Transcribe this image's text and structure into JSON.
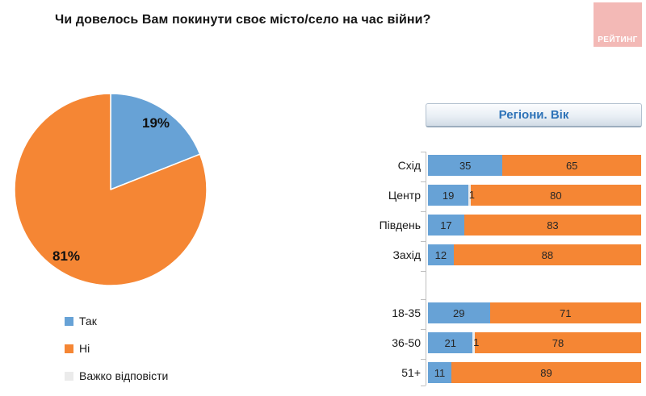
{
  "title": "Чи довелось Вам покинути своє місто/село на час війни?",
  "logo": {
    "text": "РЕЙТИНГ",
    "background": "#F3B9B6",
    "text_color": "#FFFFFF"
  },
  "colors": {
    "yes": "#67A2D6",
    "no": "#F58634",
    "dk": "#EBEBEB",
    "value_text": "#262626",
    "axis": "#BFBFBF"
  },
  "pie": {
    "labels": {
      "yes": "19%",
      "no": "81%"
    }
  },
  "legend": [
    {
      "label": "Так",
      "color_key": "yes"
    },
    {
      "label": "Ні",
      "color_key": "no"
    },
    {
      "label": "Важко відповісти",
      "color_key": "dk"
    }
  ],
  "right_panel": {
    "header": "Регіони. Вік"
  },
  "chart_data": [
    {
      "type": "pie",
      "title": "Чи довелось Вам покинути своє місто/село на час війни?",
      "categories": [
        "Так",
        "Ні",
        "Важко відповісти"
      ],
      "values": [
        19,
        81,
        0
      ],
      "unit": "%",
      "colors": [
        "#67A2D6",
        "#F58634",
        "#EBEBEB"
      ],
      "start_angle_deg": 0,
      "direction": "clockwise",
      "labels": [
        "19%",
        "81%"
      ],
      "legend_position": "bottom-left"
    },
    {
      "type": "bar",
      "subtype": "horizontal-stacked",
      "title": "Регіони. Вік",
      "series_names": [
        "Так",
        "Важко відповісти",
        "Ні"
      ],
      "series_colors": [
        "#67A2D6",
        "#EBEBEB",
        "#F58634"
      ],
      "xlim": [
        0,
        100
      ],
      "unit": "%",
      "groups": [
        {
          "name": "Регіони",
          "rows": [
            {
              "label": "Схід",
              "values": [
                35,
                0,
                65
              ]
            },
            {
              "label": "Центр",
              "values": [
                19,
                1,
                80
              ]
            },
            {
              "label": "Південь",
              "values": [
                17,
                0,
                83
              ]
            },
            {
              "label": "Захід",
              "values": [
                12,
                0,
                88
              ]
            }
          ]
        },
        {
          "name": "Вік",
          "rows": [
            {
              "label": "18-35",
              "values": [
                29,
                0,
                71
              ]
            },
            {
              "label": "36-50",
              "values": [
                21,
                1,
                78
              ]
            },
            {
              "label": "51+",
              "values": [
                11,
                0,
                89
              ]
            }
          ]
        }
      ]
    }
  ]
}
